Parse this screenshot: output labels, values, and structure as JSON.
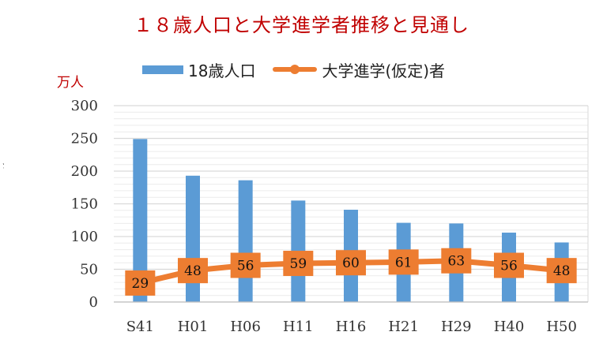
{
  "chart_data": {
    "type": "bar",
    "title": "１８歳人口と大学進学者推移と見通し",
    "ylabel": "万人",
    "ylim": [
      0,
      300
    ],
    "yticks": [
      0,
      50,
      100,
      150,
      200,
      250,
      300
    ],
    "grid": true,
    "legend_position": "top",
    "categories": [
      "S41",
      "H01",
      "H06",
      "H11",
      "H16",
      "H21",
      "H29",
      "H40",
      "H50"
    ],
    "series": [
      {
        "name": "18歳人口",
        "type": "bar",
        "color": "#5b9bd5",
        "values": [
          249,
          193,
          186,
          155,
          141,
          121,
          120,
          106,
          91
        ]
      },
      {
        "name": "大学進学(仮定)者",
        "type": "line",
        "color": "#ed7d31",
        "values": [
          29,
          48,
          56,
          59,
          60,
          61,
          63,
          56,
          48
        ],
        "data_labels": [
          "29",
          "48",
          "56",
          "59",
          "60",
          "61",
          "63",
          "56",
          "48"
        ]
      }
    ]
  },
  "edge_mark": "ゝ"
}
